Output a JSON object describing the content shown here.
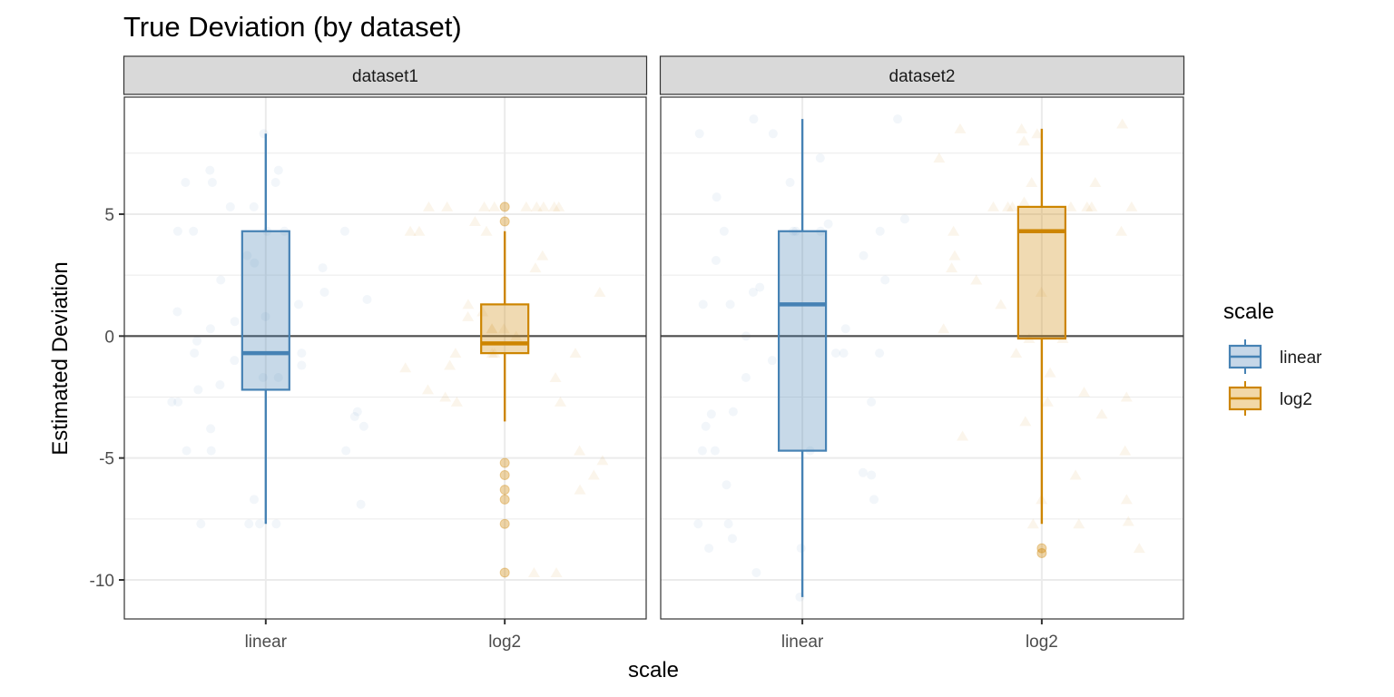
{
  "chart_data": {
    "type": "box",
    "title": "True Deviation (by dataset)",
    "xlabel": "scale",
    "ylabel": "Estimated Deviation",
    "ylim": [
      -11.6,
      9.8
    ],
    "yticks": [
      5,
      0,
      -5,
      -10
    ],
    "ytick_labels": [
      "5",
      "0",
      "-5",
      "-10"
    ],
    "yminor": [
      7.5,
      2.5,
      -2.5,
      -7.5
    ],
    "hline": 0,
    "categories": [
      "linear",
      "log2"
    ],
    "grid": true,
    "legend": {
      "title": "scale",
      "position": "right",
      "entries": [
        {
          "label": "linear",
          "color": "#4682B4",
          "fill": "#C6D7E8"
        },
        {
          "label": "log2",
          "color": "#CD8500",
          "fill": "#F2D8A8"
        }
      ]
    },
    "facets": [
      {
        "label": "dataset1",
        "boxes": [
          {
            "category": "linear",
            "whisker_low": -7.7,
            "q1": -2.2,
            "median": -0.7,
            "q3": 4.3,
            "whisker_high": 8.3,
            "outliers": []
          },
          {
            "category": "log2",
            "whisker_low": -3.5,
            "q1": -0.7,
            "median": -0.3,
            "q3": 1.3,
            "whisker_high": 4.3,
            "outliers": [
              5.3,
              4.7,
              -5.2,
              -5.7,
              -6.3,
              -6.7,
              -7.7,
              -9.7
            ]
          }
        ],
        "points": {
          "linear": [
            8.3,
            6.8,
            6.3,
            6.3,
            5.3,
            4.3,
            4.3,
            4.3,
            4.3,
            3.3,
            2.3,
            1.8,
            1.3,
            1.0,
            0.8,
            0.3,
            -0.7,
            -0.7,
            -1.7,
            -1.7,
            -2.2,
            -2.7,
            -3.1,
            -3.7,
            -4.7,
            -6.7,
            -6.9,
            -7.7,
            -7.7,
            -7.7,
            -1.2,
            -2.0,
            -0.2,
            1.5,
            3.0,
            6.8,
            6.3,
            5.3,
            4.3,
            2.8,
            0.6,
            -1.0,
            -2.7,
            -3.3,
            -4.7,
            -4.7,
            -7.7,
            -3.8
          ],
          "log2": [
            5.3,
            5.3,
            5.3,
            5.3,
            5.3,
            5.3,
            5.3,
            4.3,
            4.3,
            4.3,
            3.3,
            2.8,
            1.8,
            1.3,
            0.3,
            0.3,
            0.3,
            -0.7,
            -0.7,
            -0.7,
            -0.7,
            -1.2,
            -1.7,
            -2.2,
            -2.7,
            -2.7,
            -4.7,
            -5.1,
            -5.7,
            -6.3,
            -9.7,
            -9.7,
            0.0,
            -1.3,
            0.8,
            4.7,
            -2.5,
            1.0,
            5.3,
            5.3
          ]
        }
      },
      {
        "label": "dataset2",
        "boxes": [
          {
            "category": "linear",
            "whisker_low": -10.7,
            "q1": -4.7,
            "median": 1.3,
            "q3": 4.3,
            "whisker_high": 8.9,
            "outliers": []
          },
          {
            "category": "log2",
            "whisker_low": -7.7,
            "q1": -0.1,
            "median": 4.3,
            "q3": 5.3,
            "whisker_high": 8.5,
            "outliers": [
              -8.7,
              -8.9
            ]
          }
        ],
        "points": {
          "linear": [
            8.9,
            8.9,
            8.3,
            8.3,
            7.3,
            6.3,
            5.7,
            4.8,
            4.3,
            4.3,
            4.3,
            4.3,
            4.3,
            3.3,
            2.3,
            1.8,
            1.3,
            1.3,
            0.3,
            -0.7,
            -0.7,
            -0.7,
            -1.7,
            -2.7,
            -3.1,
            -3.7,
            -4.7,
            -4.7,
            -4.7,
            -5.7,
            -6.7,
            -7.7,
            -8.7,
            -8.7,
            -9.7,
            -10.7,
            -3.2,
            -1.0,
            0.0,
            2.0,
            -5.6,
            -6.1,
            -8.3,
            -7.7,
            4.6,
            3.1
          ],
          "log2": [
            8.5,
            8.5,
            8.3,
            8.0,
            7.3,
            6.3,
            6.3,
            5.3,
            5.3,
            5.3,
            5.3,
            5.3,
            5.3,
            5.3,
            4.3,
            4.3,
            3.3,
            2.8,
            2.3,
            1.3,
            0.3,
            -0.1,
            -0.1,
            -0.7,
            -1.5,
            -2.5,
            -2.7,
            -3.5,
            -4.1,
            -4.7,
            -5.7,
            -6.7,
            -6.7,
            -7.7,
            -7.7,
            -8.7,
            8.7,
            5.5,
            1.8,
            -2.3,
            -3.2,
            -7.6
          ]
        }
      }
    ]
  }
}
